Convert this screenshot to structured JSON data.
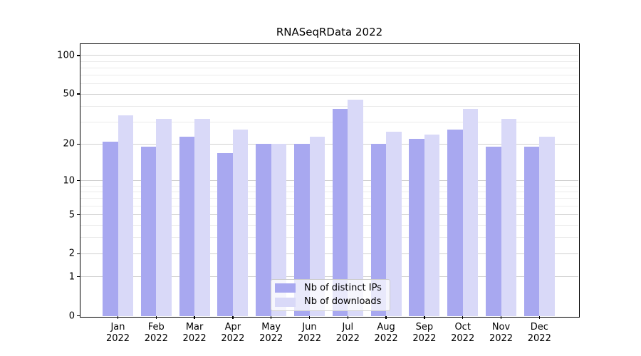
{
  "title": "RNASeqRData 2022",
  "colors": {
    "ips": "#a8a8f0",
    "downloads": "#d9d9f8",
    "grid_major": "#d0d0d0",
    "grid_minor": "#ececec",
    "axis": "#000000",
    "legend_border": "#cccccc",
    "text": "#000000"
  },
  "legend": {
    "items": [
      {
        "label": "Nb of distinct IPs",
        "series_key": "ips"
      },
      {
        "label": "Nb of downloads",
        "series_key": "downloads"
      }
    ]
  },
  "chart_data": {
    "type": "bar",
    "title": "RNASeqRData 2022",
    "scale": "log1p",
    "grid": true,
    "legend_position": "lower center",
    "categories": [
      "Jan",
      "Feb",
      "Mar",
      "Apr",
      "May",
      "Jun",
      "Jul",
      "Aug",
      "Sep",
      "Oct",
      "Nov",
      "Dec"
    ],
    "year_label": "2022",
    "series": [
      {
        "name": "Nb of distinct IPs",
        "color_key": "ips",
        "values": [
          21,
          19,
          23,
          17,
          20,
          20,
          38,
          20,
          22,
          26,
          19,
          19
        ]
      },
      {
        "name": "Nb of downloads",
        "color_key": "downloads",
        "values": [
          34,
          32,
          32,
          26,
          20,
          23,
          45,
          25,
          24,
          38,
          32,
          23
        ]
      }
    ],
    "yticks": [
      100,
      50,
      20,
      10,
      5,
      2,
      1,
      0
    ],
    "minor_gridlines": [
      3,
      4,
      6,
      7,
      8,
      9,
      30,
      40,
      60,
      70,
      80,
      90
    ],
    "ylim": [
      0,
      123
    ],
    "xlabel": "",
    "ylabel": ""
  }
}
